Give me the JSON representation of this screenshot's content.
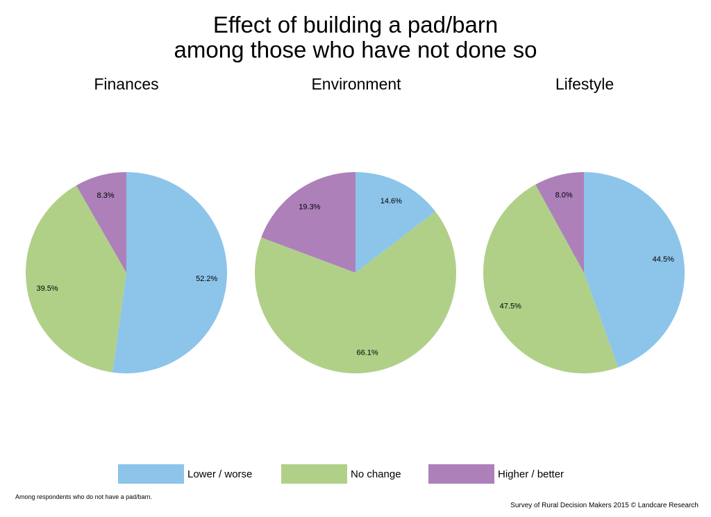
{
  "title_line1": "Effect of building a pad/barn",
  "title_line2": "among those who have not done so",
  "legend": {
    "lower": "Lower / worse",
    "nochange": "No change",
    "higher": "Higher / better"
  },
  "footnote": "Among respondents who do not have a pad/barn.",
  "source": "Survey of Rural Decision Makers 2015 © Landcare Research",
  "colors": {
    "lower": "#8dc4ea",
    "nochange": "#b0d088",
    "higher": "#ad80ba"
  },
  "chart_data": [
    {
      "type": "pie",
      "title": "Finances",
      "slices": [
        {
          "category": "Lower / worse",
          "value": 52.2,
          "label": "52.2%"
        },
        {
          "category": "No change",
          "value": 39.5,
          "label": "39.5%"
        },
        {
          "category": "Higher / better",
          "value": 8.3,
          "label": "8.3%"
        }
      ]
    },
    {
      "type": "pie",
      "title": "Environment",
      "slices": [
        {
          "category": "Lower / worse",
          "value": 14.6,
          "label": "14.6%"
        },
        {
          "category": "No change",
          "value": 66.1,
          "label": "66.1%"
        },
        {
          "category": "Higher / better",
          "value": 19.3,
          "label": "19.3%"
        }
      ]
    },
    {
      "type": "pie",
      "title": "Lifestyle",
      "slices": [
        {
          "category": "Lower / worse",
          "value": 44.5,
          "label": "44.5%"
        },
        {
          "category": "No change",
          "value": 47.5,
          "label": "47.5%"
        },
        {
          "category": "Higher / better",
          "value": 8.0,
          "label": "8.0%"
        }
      ]
    }
  ]
}
